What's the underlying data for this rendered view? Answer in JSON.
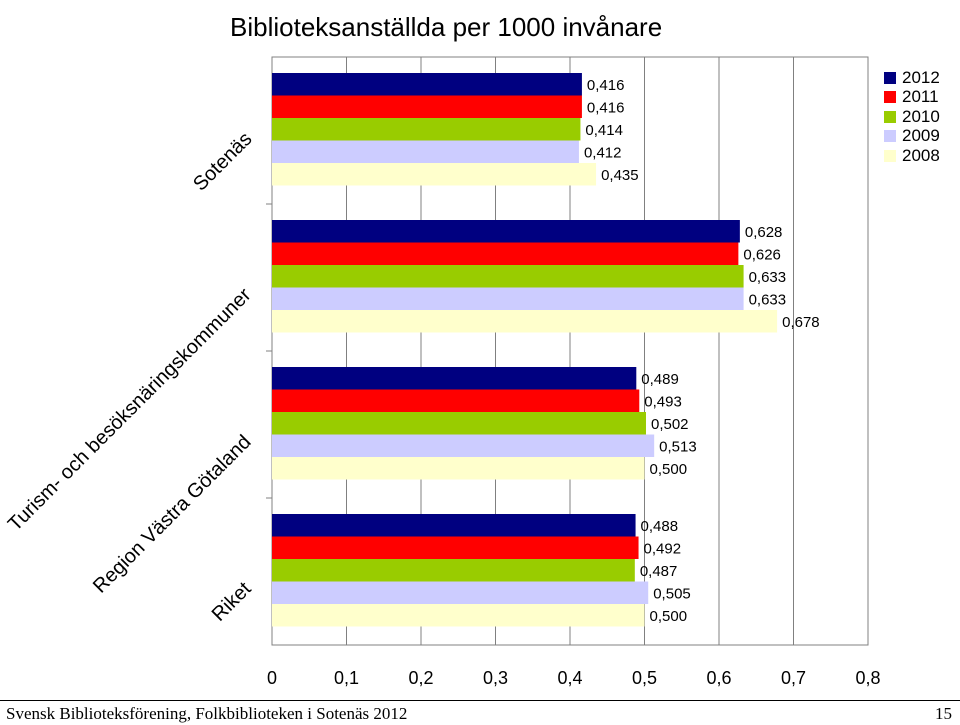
{
  "chart_data": {
    "type": "bar",
    "orientation": "horizontal",
    "title": "Biblioteksanställda per 1000 invånare",
    "categories": [
      "Sotenäs",
      "Turism- och besöksnäringskommuner",
      "Region Västra Götaland",
      "Riket"
    ],
    "series": [
      {
        "name": "2012",
        "color": "#000080",
        "values": [
          0.416,
          0.628,
          0.489,
          0.488
        ],
        "labels": [
          "0,416",
          "0,628",
          "0,489",
          "0,488"
        ]
      },
      {
        "name": "2011",
        "color": "#ff0000",
        "values": [
          0.416,
          0.626,
          0.493,
          0.492
        ],
        "labels": [
          "0,416",
          "0,626",
          "0,493",
          "0,492"
        ]
      },
      {
        "name": "2010",
        "color": "#99cc00",
        "values": [
          0.414,
          0.633,
          0.502,
          0.487
        ],
        "labels": [
          "0,414",
          "0,633",
          "0,502",
          "0,487"
        ]
      },
      {
        "name": "2009",
        "color": "#ccccff",
        "values": [
          0.412,
          0.633,
          0.513,
          0.505
        ],
        "labels": [
          "0,412",
          "0,633",
          "0,513",
          "0,505"
        ]
      },
      {
        "name": "2008",
        "color": "#ffffcc",
        "values": [
          0.435,
          0.678,
          0.5,
          0.5
        ],
        "labels": [
          "0,435",
          "0,678",
          "0,500",
          "0,500"
        ]
      }
    ],
    "xlim": [
      0,
      0.8
    ],
    "xticks": [
      "0",
      "0,1",
      "0,2",
      "0,3",
      "0,4",
      "0,5",
      "0,6",
      "0,7",
      "0,8"
    ],
    "grid": true,
    "legend_position": "top-right"
  },
  "footer": {
    "left": "Svensk Biblioteksförening, Folkbiblioteken i Sotenäs 2012",
    "right": "15"
  }
}
